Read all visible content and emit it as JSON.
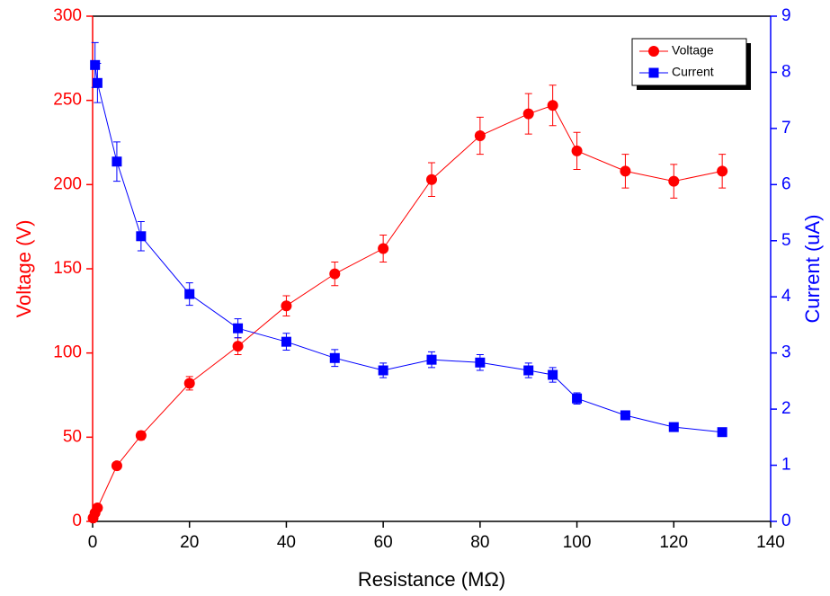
{
  "chart_data": {
    "type": "line",
    "x_label": "Resistance (MΩ)",
    "y_label": "Voltage (V)",
    "y2_label": "Current (uA)",
    "xlim": [
      0,
      140
    ],
    "xticks": [
      0,
      20,
      40,
      60,
      80,
      100,
      120,
      140
    ],
    "ylim": [
      0,
      300
    ],
    "yticks": [
      0,
      50,
      100,
      150,
      200,
      250,
      300
    ],
    "y2lim": [
      0,
      9
    ],
    "y2ticks": [
      0,
      1,
      2,
      3,
      4,
      5,
      6,
      7,
      8,
      9
    ],
    "legend": "upper right",
    "grid": false,
    "series": [
      {
        "name": "Voltage",
        "color": "#ff0000",
        "marker": "circle",
        "axis": "y",
        "x": [
          0.1,
          0.5,
          1,
          5,
          10,
          20,
          30,
          40,
          50,
          60,
          70,
          80,
          90,
          95,
          100,
          110,
          120,
          130
        ],
        "values": [
          2,
          5,
          8,
          33,
          51,
          82,
          104,
          128,
          147,
          162,
          203,
          229,
          242,
          247,
          220,
          208,
          202,
          208
        ],
        "errors": [
          0.1,
          0.3,
          0.4,
          1.6,
          2.5,
          4,
          5,
          6,
          7,
          8,
          10,
          11,
          12,
          12,
          11,
          10,
          10,
          10
        ]
      },
      {
        "name": "Current",
        "color": "#0000ff",
        "marker": "square",
        "axis": "y2",
        "x": [
          0.5,
          1,
          5,
          10,
          20,
          30,
          40,
          50,
          60,
          70,
          80,
          90,
          95,
          100,
          110,
          120,
          130
        ],
        "values": [
          8.13,
          7.81,
          6.41,
          5.08,
          4.05,
          3.44,
          3.2,
          2.91,
          2.69,
          2.88,
          2.83,
          2.69,
          2.61,
          2.19,
          1.89,
          1.68,
          1.59
        ],
        "errors": [
          0.4,
          0.35,
          0.35,
          0.26,
          0.2,
          0.17,
          0.15,
          0.15,
          0.13,
          0.14,
          0.14,
          0.13,
          0.13,
          0.1,
          0.08,
          0.05,
          0.04
        ]
      }
    ]
  }
}
